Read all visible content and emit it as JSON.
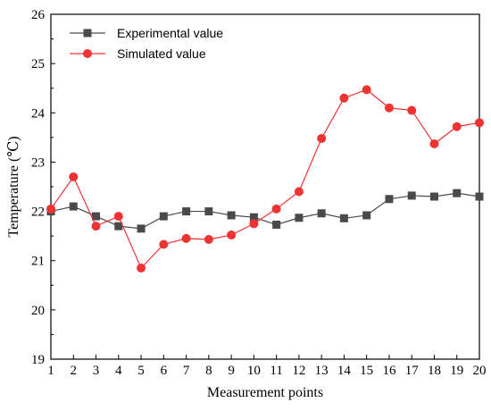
{
  "chart_data": {
    "type": "line",
    "xlabel": "Measurement points",
    "ylabel": "Temperature (℃)",
    "xlim": [
      1,
      20
    ],
    "ylim": [
      19,
      26
    ],
    "x": [
      1,
      2,
      3,
      4,
      5,
      6,
      7,
      8,
      9,
      10,
      11,
      12,
      13,
      14,
      15,
      16,
      17,
      18,
      19,
      20
    ],
    "x_ticks": [
      "1",
      "2",
      "3",
      "4",
      "5",
      "6",
      "7",
      "8",
      "9",
      "10",
      "11",
      "12",
      "13",
      "14",
      "15",
      "16",
      "17",
      "18",
      "19",
      "20"
    ],
    "y_ticks": [
      "19",
      "20",
      "21",
      "22",
      "23",
      "24",
      "25",
      "26"
    ],
    "grid": false,
    "legend_position": "top-left",
    "series": [
      {
        "name": "Experimental value",
        "color": "#4a4a4a",
        "marker": "square",
        "values": [
          22.0,
          22.1,
          21.9,
          21.7,
          21.65,
          21.9,
          22.0,
          22.0,
          21.92,
          21.88,
          21.73,
          21.87,
          21.96,
          21.86,
          21.92,
          22.25,
          22.32,
          22.3,
          22.37,
          22.3
        ]
      },
      {
        "name": "Simulated value",
        "color": "#ee3333",
        "marker": "circle",
        "values": [
          22.05,
          22.7,
          21.7,
          21.9,
          20.85,
          21.33,
          21.45,
          21.43,
          21.52,
          21.75,
          22.05,
          22.4,
          23.48,
          24.3,
          24.47,
          24.1,
          24.05,
          23.37,
          23.72,
          23.8
        ]
      }
    ]
  }
}
